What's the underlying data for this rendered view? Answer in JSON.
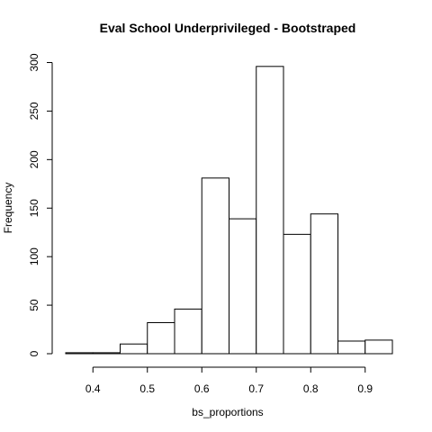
{
  "chart_data": {
    "type": "bar",
    "title": "Eval School Underprivileged - Bootstraped",
    "xlabel": "bs_proportions",
    "ylabel": "Frequency",
    "bins": [
      {
        "start": 0.35,
        "end": 0.4,
        "count": 1
      },
      {
        "start": 0.4,
        "end": 0.45,
        "count": 1
      },
      {
        "start": 0.45,
        "end": 0.5,
        "count": 10
      },
      {
        "start": 0.5,
        "end": 0.55,
        "count": 32
      },
      {
        "start": 0.55,
        "end": 0.6,
        "count": 46
      },
      {
        "start": 0.6,
        "end": 0.65,
        "count": 181
      },
      {
        "start": 0.65,
        "end": 0.7,
        "count": 139
      },
      {
        "start": 0.7,
        "end": 0.75,
        "count": 296
      },
      {
        "start": 0.75,
        "end": 0.8,
        "count": 123
      },
      {
        "start": 0.8,
        "end": 0.85,
        "count": 144
      },
      {
        "start": 0.85,
        "end": 0.9,
        "count": 13
      },
      {
        "start": 0.9,
        "end": 0.95,
        "count": 14
      }
    ],
    "x_ticks": [
      {
        "value": 0.4,
        "label": "0.4"
      },
      {
        "value": 0.5,
        "label": "0.5"
      },
      {
        "value": 0.6,
        "label": "0.6"
      },
      {
        "value": 0.7,
        "label": "0.7"
      },
      {
        "value": 0.8,
        "label": "0.8"
      },
      {
        "value": 0.9,
        "label": "0.9"
      }
    ],
    "y_ticks": [
      {
        "value": 0,
        "label": "0"
      },
      {
        "value": 50,
        "label": "50"
      },
      {
        "value": 100,
        "label": "100"
      },
      {
        "value": 150,
        "label": "150"
      },
      {
        "value": 200,
        "label": "200"
      },
      {
        "value": 250,
        "label": "250"
      },
      {
        "value": 300,
        "label": "300"
      }
    ],
    "xlim": [
      0.35,
      0.95
    ],
    "ylim": [
      0,
      300
    ],
    "grid": false,
    "legend": "none",
    "colors": {
      "bar_fill": "#ffffff",
      "bar_stroke": "#000000"
    }
  }
}
